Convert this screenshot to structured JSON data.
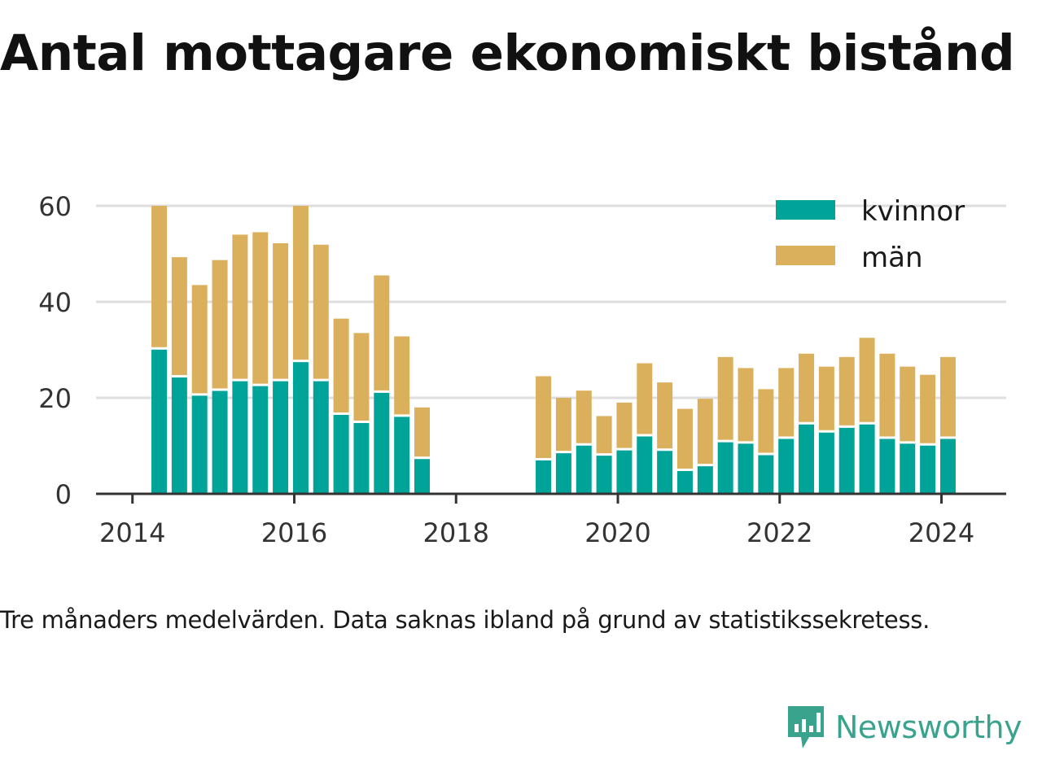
{
  "title": "Antal mottagare ekonomiskt bistånd",
  "caption": "Tre månaders medelvärden. Data saknas ibland på grund av statistikssekretess.",
  "brand": {
    "name": "Newsworthy",
    "icon": "newsworthy-logo-icon",
    "color": "#3aa38e"
  },
  "chart_data": {
    "type": "bar",
    "stacked": true,
    "xlim": [
      2013.55,
      2024.8
    ],
    "ylim": [
      0,
      60
    ],
    "xticks": [
      "2014",
      "2016",
      "2018",
      "2020",
      "2022",
      "2024"
    ],
    "yticks": [
      "0",
      "20",
      "40",
      "60"
    ],
    "grid": true,
    "legend_position": "top-right",
    "colors": {
      "kvinnor": "#00a398",
      "män": "#dbb05c"
    },
    "x": [
      2014.33,
      2014.58,
      2014.83,
      2015.08,
      2015.33,
      2015.58,
      2015.83,
      2016.08,
      2016.33,
      2016.58,
      2016.83,
      2017.08,
      2017.33,
      2017.58,
      2019.08,
      2019.33,
      2019.58,
      2019.83,
      2020.08,
      2020.33,
      2020.58,
      2020.83,
      2021.08,
      2021.33,
      2021.58,
      2021.83,
      2022.08,
      2022.33,
      2022.58,
      2022.83,
      2023.08,
      2023.33,
      2023.58,
      2023.83,
      2024.08
    ],
    "series": [
      {
        "name": "kvinnor",
        "values": [
          30.3,
          24.5,
          20.7,
          21.7,
          23.7,
          22.7,
          23.7,
          27.7,
          23.7,
          16.7,
          15.0,
          21.3,
          16.3,
          7.5,
          7.2,
          8.7,
          10.3,
          8.2,
          9.3,
          12.2,
          9.2,
          5.0,
          6.0,
          11.0,
          10.7,
          8.3,
          11.7,
          14.7,
          13.0,
          14.0,
          14.7,
          11.7,
          10.7,
          10.3,
          11.7
        ]
      },
      {
        "name": "män",
        "values": [
          29.7,
          24.8,
          22.8,
          27.0,
          30.3,
          31.8,
          28.5,
          32.3,
          28.2,
          19.8,
          18.5,
          24.2,
          16.5,
          10.5,
          17.3,
          11.3,
          11.2,
          8.0,
          9.7,
          15.0,
          14.0,
          12.7,
          13.8,
          17.5,
          15.5,
          13.5,
          14.5,
          14.5,
          13.5,
          14.5,
          17.8,
          17.5,
          15.8,
          14.5,
          16.8
        ]
      }
    ]
  }
}
